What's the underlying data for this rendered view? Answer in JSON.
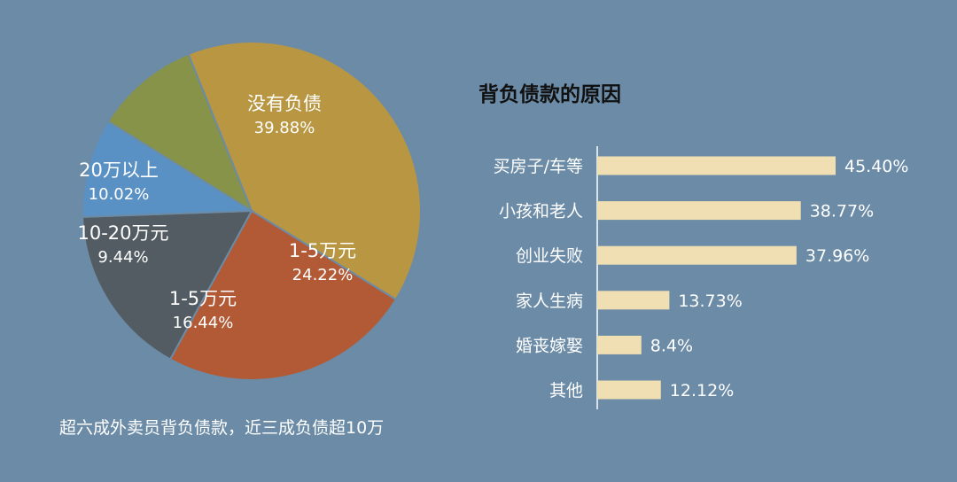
{
  "chart_data": [
    {
      "type": "pie",
      "title": "",
      "caption": "超六成外卖员背负债款，近三成负债超10万",
      "slices": [
        {
          "label": "没有负债",
          "value": 39.88,
          "value_text": "39.88%",
          "color": "#b99642"
        },
        {
          "label": "1-5万元",
          "value": 24.22,
          "value_text": "24.22%",
          "color": "#b25a35"
        },
        {
          "label": "1-5万元",
          "value": 16.44,
          "value_text": "16.44%",
          "color": "#525c62"
        },
        {
          "label": "10-20万元",
          "value": 9.44,
          "value_text": "9.44%",
          "color": "#5a91c4"
        },
        {
          "label": "20万以上",
          "value": 10.02,
          "value_text": "10.02%",
          "color": "#869349"
        }
      ]
    },
    {
      "type": "bar",
      "orientation": "horizontal",
      "title": "背负债款的原因",
      "categories": [
        "买房子/车等",
        "小孩和老人",
        "创业失败",
        "家人生病",
        "婚丧嫁娶",
        "其他"
      ],
      "values": [
        45.4,
        38.77,
        37.96,
        13.73,
        8.4,
        12.12
      ],
      "value_texts": [
        "45.40%",
        "38.77%",
        "37.96%",
        "13.73%",
        "8.4%",
        "12.12%"
      ],
      "xlim": [
        0,
        50
      ],
      "bar_color": "#f0dfb2",
      "grid": false
    }
  ],
  "colors": {
    "background": "#6b8ba6",
    "text": "#ffffff",
    "title": "#111111",
    "axis": "#ffffff"
  }
}
